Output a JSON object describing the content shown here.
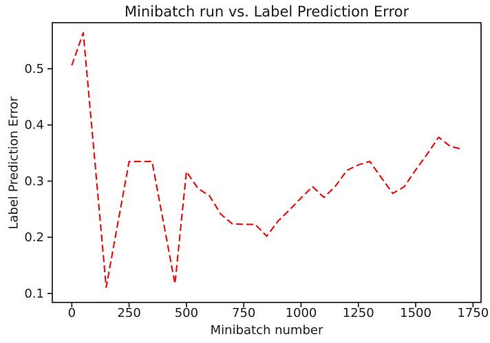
{
  "chart_data": {
    "type": "line",
    "title": "Minibatch run vs. Label Prediction Error",
    "xlabel": "Minibatch number",
    "ylabel": "Label Prediction Error",
    "xlim": [
      -85,
      1785
    ],
    "ylim": [
      0.084,
      0.582
    ],
    "x_tick_values": [
      0,
      250,
      500,
      750,
      1000,
      1250,
      1500,
      1750
    ],
    "x_tick_labels": [
      "0",
      "250",
      "500",
      "750",
      "1000",
      "1250",
      "1500",
      "1750"
    ],
    "y_tick_values": [
      0.1,
      0.2,
      0.3,
      0.4,
      0.5
    ],
    "y_tick_labels": [
      "0.1",
      "0.2",
      "0.3",
      "0.4",
      "0.5"
    ],
    "grid": false,
    "legend": "none",
    "series": [
      {
        "name": "label-prediction-error",
        "color": "#ff0000",
        "linestyle": "dashed",
        "x": [
          0,
          50,
          100,
          150,
          200,
          250,
          300,
          350,
          400,
          450,
          500,
          550,
          600,
          650,
          700,
          750,
          800,
          850,
          900,
          950,
          1000,
          1050,
          1100,
          1150,
          1200,
          1250,
          1300,
          1350,
          1400,
          1450,
          1500,
          1550,
          1600,
          1650,
          1700
        ],
        "y": [
          0.506,
          0.564,
          0.338,
          0.111,
          0.223,
          0.335,
          0.335,
          0.335,
          0.226,
          0.117,
          0.317,
          0.287,
          0.274,
          0.241,
          0.224,
          0.223,
          0.223,
          0.202,
          0.229,
          0.249,
          0.27,
          0.29,
          0.271,
          0.291,
          0.319,
          0.329,
          0.335,
          0.306,
          0.278,
          0.29,
          0.32,
          0.348,
          0.378,
          0.362,
          0.357
        ]
      }
    ],
    "colors": {
      "line": "#ff0000",
      "text": "#1b1b1b",
      "spine": "#222222",
      "background": "#ffffff"
    }
  }
}
